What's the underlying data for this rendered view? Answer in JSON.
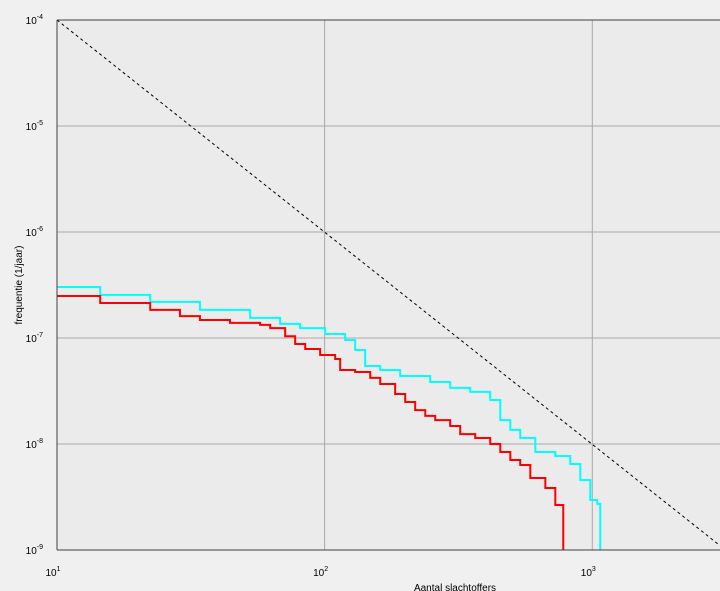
{
  "chart_data": {
    "type": "line",
    "step": "post",
    "xlabel": "Aantal slachtoffers",
    "ylabel": "frequentie (1/jaar)",
    "xscale": "log",
    "yscale": "log",
    "xlim": [
      10,
      3000
    ],
    "ylim": [
      1e-09,
      0.0001
    ],
    "xticks": [
      {
        "value": 10,
        "label": "10",
        "exponent": "1"
      },
      {
        "value": 100,
        "label": "10",
        "exponent": "2"
      },
      {
        "value": 1000,
        "label": "10",
        "exponent": "3"
      }
    ],
    "yticks": [
      {
        "value": 1e-09,
        "label": "10",
        "exponent": "-9"
      },
      {
        "value": 1e-08,
        "label": "10",
        "exponent": "-8"
      },
      {
        "value": 1e-07,
        "label": "10",
        "exponent": "-7"
      },
      {
        "value": 1e-06,
        "label": "10",
        "exponent": "-6"
      },
      {
        "value": 1e-05,
        "label": "10",
        "exponent": "-5"
      },
      {
        "value": 0.0001,
        "label": "10",
        "exponent": "-4"
      }
    ],
    "grid": true,
    "series": [
      {
        "color": "#000000",
        "dashed": true,
        "step": "none",
        "x": [
          10,
          3000
        ],
        "values": [
          0.0001,
          1.1e-09
        ]
      },
      {
        "color": "#00ffff",
        "x": [
          10,
          14.5,
          22.3,
          34.2,
          52.7,
          68.2,
          81,
          100.4,
          119.3,
          130,
          141.7,
          161.3,
          191.5,
          248,
          294.5,
          350,
          415.6,
          453.1,
          494,
          538,
          612.5,
          727.5,
          827.6,
          901.8,
          983,
          1044,
          1071
        ],
        "values": [
          3.03e-07,
          2.55e-07,
          2.19e-07,
          1.84e-07,
          1.55e-07,
          1.36e-07,
          1.24e-07,
          1.09e-07,
          9.58e-08,
          7.71e-08,
          5.45e-08,
          4.99e-08,
          4.38e-08,
          3.85e-08,
          3.38e-08,
          3.1e-08,
          2.6e-08,
          1.68e-08,
          1.36e-08,
          1.14e-08,
          8.41e-09,
          7.71e-09,
          6.47e-09,
          4.57e-09,
          2.96e-09,
          2.72e-09,
          1e-09
        ]
      },
      {
        "color": "#ff0000",
        "x": [
          10,
          14.5,
          22.3,
          28.8,
          34.2,
          44.3,
          57.4,
          62.6,
          71.2,
          77.6,
          84.6,
          96.2,
          109.5,
          114.3,
          130,
          148,
          161.3,
          183.4,
          200,
          217.9,
          237.6,
          258.9,
          294.5,
          321,
          365.3,
          415.6,
          453.1,
          494,
          538,
          586.6,
          667.6,
          727.5,
          779
        ],
        "values": [
          2.49e-07,
          2.14e-07,
          1.84e-07,
          1.61e-07,
          1.48e-07,
          1.39e-07,
          1.33e-07,
          1.24e-07,
          1.04e-07,
          8.77e-08,
          7.87e-08,
          6.92e-08,
          6.34e-08,
          4.99e-08,
          4.78e-08,
          4.2e-08,
          3.68e-08,
          2.96e-08,
          2.49e-08,
          2.09e-08,
          1.84e-08,
          1.68e-08,
          1.48e-08,
          1.24e-08,
          1.14e-08,
          1e-08,
          8.41e-09,
          7.06e-09,
          6.34e-09,
          4.78e-09,
          3.85e-09,
          2.66e-09,
          1e-09
        ]
      }
    ]
  }
}
